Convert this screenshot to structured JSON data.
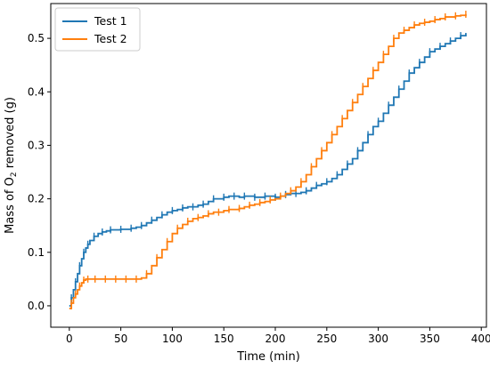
{
  "chart_data": {
    "type": "line",
    "xlabel": "Time (min)",
    "ylabel_pre": "Mass of O",
    "ylabel_sub": "2",
    "ylabel_post": " removed (g)",
    "xlim": [
      -18,
      405
    ],
    "ylim": [
      -0.04,
      0.565
    ],
    "xticks": [
      0,
      50,
      100,
      150,
      200,
      250,
      300,
      350,
      400
    ],
    "yticks": [
      0.0,
      0.1,
      0.2,
      0.3,
      0.4,
      0.5
    ],
    "ytick_labels": [
      "0.0",
      "0.1",
      "0.2",
      "0.3",
      "0.4",
      "0.5"
    ],
    "grid": false,
    "legend_position": "top-left",
    "series": [
      {
        "name": "Test 1",
        "color": "#1f77b4",
        "x": [
          0,
          2,
          4,
          6,
          8,
          10,
          12,
          14,
          16,
          18,
          20,
          24,
          28,
          32,
          36,
          40,
          45,
          50,
          55,
          60,
          65,
          70,
          75,
          80,
          85,
          90,
          95,
          100,
          105,
          110,
          115,
          120,
          125,
          130,
          135,
          140,
          145,
          150,
          155,
          160,
          165,
          170,
          175,
          180,
          185,
          190,
          195,
          200,
          205,
          210,
          215,
          220,
          225,
          230,
          235,
          240,
          245,
          250,
          255,
          260,
          265,
          270,
          275,
          280,
          285,
          290,
          295,
          300,
          305,
          310,
          315,
          320,
          325,
          330,
          335,
          340,
          345,
          350,
          355,
          360,
          365,
          370,
          375,
          380,
          385
        ],
        "y": [
          0.0,
          0.015,
          0.03,
          0.045,
          0.06,
          0.075,
          0.088,
          0.1,
          0.108,
          0.115,
          0.122,
          0.13,
          0.135,
          0.138,
          0.14,
          0.142,
          0.142,
          0.143,
          0.143,
          0.145,
          0.147,
          0.15,
          0.155,
          0.16,
          0.165,
          0.17,
          0.175,
          0.178,
          0.18,
          0.183,
          0.185,
          0.185,
          0.188,
          0.19,
          0.195,
          0.2,
          0.2,
          0.203,
          0.205,
          0.205,
          0.203,
          0.205,
          0.205,
          0.203,
          0.203,
          0.205,
          0.205,
          0.203,
          0.205,
          0.208,
          0.21,
          0.21,
          0.212,
          0.215,
          0.22,
          0.225,
          0.228,
          0.232,
          0.238,
          0.245,
          0.255,
          0.265,
          0.275,
          0.29,
          0.305,
          0.32,
          0.335,
          0.345,
          0.36,
          0.375,
          0.39,
          0.405,
          0.42,
          0.435,
          0.445,
          0.455,
          0.465,
          0.475,
          0.48,
          0.485,
          0.49,
          0.495,
          0.5,
          0.505,
          0.51
        ]
      },
      {
        "name": "Test 2",
        "color": "#ff7f0e",
        "x": [
          0,
          2,
          4,
          6,
          8,
          10,
          12,
          14,
          16,
          18,
          20,
          25,
          30,
          35,
          40,
          45,
          50,
          55,
          60,
          65,
          70,
          75,
          80,
          85,
          90,
          95,
          100,
          105,
          110,
          115,
          120,
          125,
          130,
          135,
          140,
          145,
          150,
          155,
          160,
          165,
          170,
          175,
          180,
          185,
          190,
          195,
          200,
          205,
          210,
          215,
          220,
          225,
          230,
          235,
          240,
          245,
          250,
          255,
          260,
          265,
          270,
          275,
          280,
          285,
          290,
          295,
          300,
          305,
          310,
          315,
          320,
          325,
          330,
          335,
          340,
          345,
          350,
          355,
          360,
          365,
          370,
          375,
          380,
          385
        ],
        "y": [
          -0.005,
          0.005,
          0.015,
          0.022,
          0.03,
          0.037,
          0.043,
          0.048,
          0.05,
          0.05,
          0.05,
          0.05,
          0.05,
          0.05,
          0.05,
          0.05,
          0.05,
          0.05,
          0.05,
          0.05,
          0.052,
          0.06,
          0.075,
          0.09,
          0.105,
          0.12,
          0.135,
          0.145,
          0.152,
          0.158,
          0.163,
          0.165,
          0.168,
          0.172,
          0.175,
          0.175,
          0.178,
          0.18,
          0.18,
          0.182,
          0.185,
          0.188,
          0.19,
          0.193,
          0.195,
          0.198,
          0.2,
          0.205,
          0.21,
          0.215,
          0.222,
          0.232,
          0.245,
          0.26,
          0.275,
          0.29,
          0.305,
          0.32,
          0.335,
          0.35,
          0.365,
          0.38,
          0.395,
          0.41,
          0.425,
          0.44,
          0.455,
          0.47,
          0.485,
          0.5,
          0.51,
          0.515,
          0.52,
          0.525,
          0.528,
          0.53,
          0.532,
          0.535,
          0.537,
          0.54,
          0.54,
          0.542,
          0.543,
          0.545
        ]
      }
    ]
  }
}
